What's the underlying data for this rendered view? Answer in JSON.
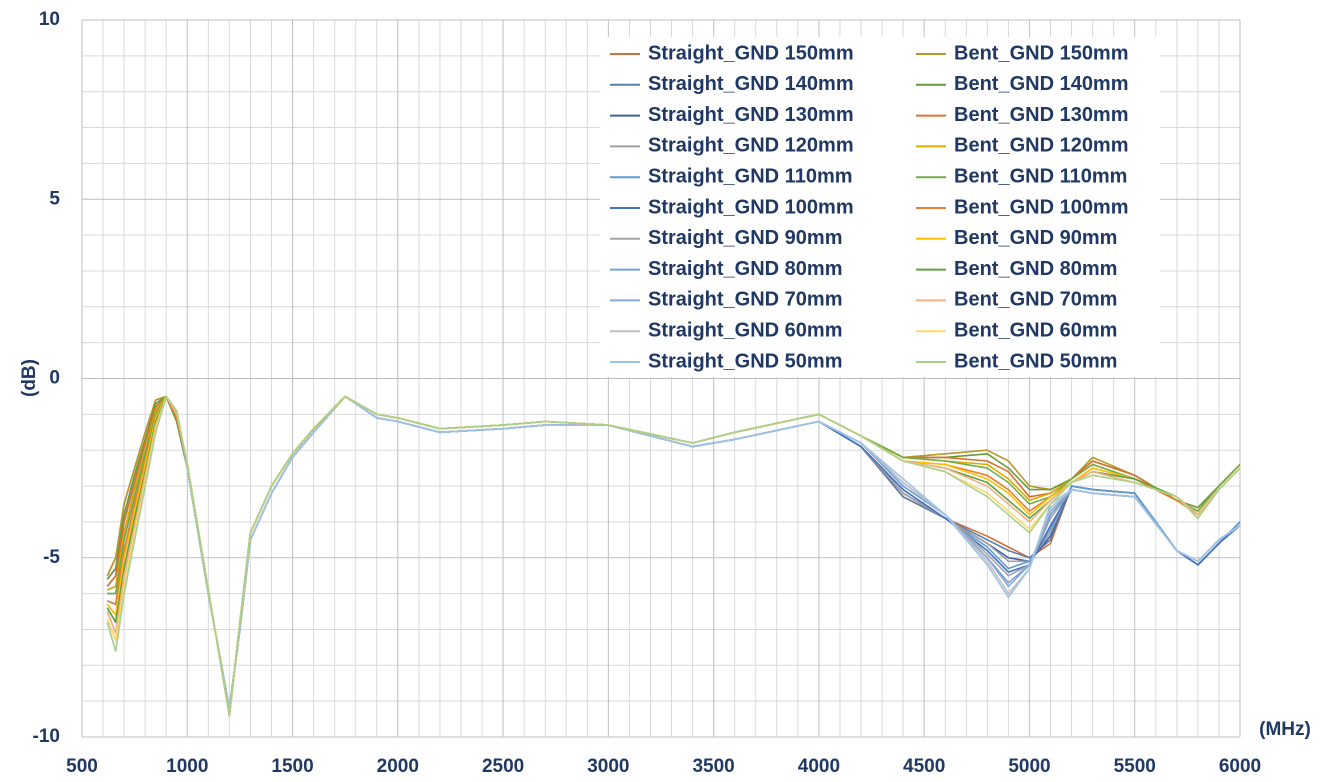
{
  "chart_data": {
    "type": "line",
    "x_label": "(MHz)",
    "y_label": "(dB)",
    "x": [
      620,
      660,
      700,
      750,
      800,
      850,
      900,
      950,
      1000,
      1100,
      1200,
      1250,
      1300,
      1400,
      1500,
      1600,
      1750,
      1900,
      2000,
      2200,
      2500,
      2700,
      3000,
      3400,
      3600,
      4000,
      4200,
      4400,
      4600,
      4800,
      4900,
      5000,
      5100,
      5200,
      5300,
      5500,
      5700,
      5800,
      5900,
      6000
    ],
    "xlim": [
      500,
      6000
    ],
    "xticks": [
      500,
      1000,
      1500,
      2000,
      2500,
      3000,
      3500,
      4000,
      4500,
      5000,
      5500,
      6000
    ],
    "ylim": [
      -10,
      10
    ],
    "yticks": [
      -10,
      -5,
      0,
      5,
      10
    ],
    "minor_xticks": [
      600,
      700,
      800,
      900,
      1100,
      1200,
      1300,
      1400,
      1600,
      1700,
      1800,
      1900,
      2100,
      2200,
      2300,
      2400,
      2600,
      2700,
      2800,
      2900,
      3100,
      3200,
      3300,
      3400,
      3600,
      3700,
      3800,
      3900,
      4100,
      4200,
      4300,
      4400,
      4600,
      4700,
      4800,
      4900,
      5100,
      5200,
      5300,
      5400,
      5600,
      5700,
      5800,
      5900
    ],
    "minor_yticks": [
      -9,
      -8,
      -7,
      -6,
      -4,
      -3,
      -2,
      -1,
      1,
      2,
      3,
      4,
      6,
      7,
      8,
      9
    ],
    "grid": true,
    "legend": "upper right",
    "series": [
      {
        "name": "Straight_GND 150mm",
        "color": "#d0703c",
        "values": [
          -5.5,
          -5.0,
          -3.5,
          -2.5,
          -1.5,
          -0.6,
          -0.5,
          -1.2,
          -2.5,
          -6.0,
          -9.2,
          -7.0,
          -4.5,
          -3.2,
          -2.2,
          -1.5,
          -0.5,
          -1.1,
          -1.2,
          -1.5,
          -1.4,
          -1.3,
          -1.3,
          -1.9,
          -1.7,
          -1.2,
          -1.9,
          -3.3,
          -3.9,
          -4.4,
          -4.7,
          -5.0,
          -4.6,
          -3.0,
          -3.1,
          -3.2,
          -4.8,
          -5.2,
          -4.6,
          -4.0
        ]
      },
      {
        "name": "Straight_GND 140mm",
        "color": "#5b7fa6",
        "values": [
          -5.6,
          -5.3,
          -3.8,
          -2.7,
          -1.7,
          -0.7,
          -0.5,
          -1.2,
          -2.5,
          -6.0,
          -9.2,
          -7.0,
          -4.5,
          -3.2,
          -2.2,
          -1.5,
          -0.5,
          -1.1,
          -1.2,
          -1.5,
          -1.4,
          -1.3,
          -1.3,
          -1.9,
          -1.7,
          -1.2,
          -1.9,
          -3.3,
          -3.9,
          -4.5,
          -4.8,
          -5.0,
          -4.5,
          -3.0,
          -3.1,
          -3.2,
          -4.8,
          -5.2,
          -4.6,
          -4.0
        ]
      },
      {
        "name": "Straight_GND 130mm",
        "color": "#3f5fa8",
        "values": [
          -5.8,
          -5.5,
          -4.0,
          -2.9,
          -1.8,
          -0.8,
          -0.5,
          -1.1,
          -2.5,
          -6.0,
          -9.2,
          -7.0,
          -4.5,
          -3.2,
          -2.2,
          -1.5,
          -0.5,
          -1.1,
          -1.2,
          -1.5,
          -1.4,
          -1.3,
          -1.3,
          -1.9,
          -1.7,
          -1.2,
          -1.9,
          -3.2,
          -3.9,
          -4.6,
          -5.0,
          -5.1,
          -4.4,
          -3.0,
          -3.1,
          -3.2,
          -4.8,
          -5.2,
          -4.6,
          -4.0
        ]
      },
      {
        "name": "Straight_GND 120mm",
        "color": "#a0a0a0",
        "values": [
          -5.9,
          -5.8,
          -4.3,
          -3.1,
          -2.0,
          -0.9,
          -0.5,
          -1.1,
          -2.5,
          -6.0,
          -9.2,
          -7.0,
          -4.5,
          -3.2,
          -2.2,
          -1.5,
          -0.5,
          -1.1,
          -1.2,
          -1.5,
          -1.4,
          -1.3,
          -1.3,
          -1.9,
          -1.7,
          -1.2,
          -1.9,
          -3.2,
          -3.9,
          -4.6,
          -5.1,
          -5.1,
          -4.3,
          -3.0,
          -3.1,
          -3.2,
          -4.8,
          -5.2,
          -4.6,
          -4.0
        ]
      },
      {
        "name": "Straight_GND 110mm",
        "color": "#5b9bd5",
        "values": [
          -6.0,
          -6.0,
          -4.5,
          -3.3,
          -2.1,
          -1.0,
          -0.5,
          -1.1,
          -2.5,
          -6.0,
          -9.2,
          -7.0,
          -4.5,
          -3.2,
          -2.2,
          -1.5,
          -0.5,
          -1.1,
          -1.2,
          -1.5,
          -1.4,
          -1.3,
          -1.3,
          -1.9,
          -1.7,
          -1.2,
          -1.9,
          -3.1,
          -3.9,
          -4.7,
          -5.3,
          -5.1,
          -4.2,
          -3.0,
          -3.1,
          -3.2,
          -4.8,
          -5.2,
          -4.6,
          -4.0
        ]
      },
      {
        "name": "Straight_GND 100mm",
        "color": "#4472c4",
        "values": [
          -6.2,
          -6.3,
          -4.8,
          -3.5,
          -2.3,
          -1.1,
          -0.5,
          -1.1,
          -2.5,
          -6.0,
          -9.2,
          -7.0,
          -4.5,
          -3.2,
          -2.2,
          -1.5,
          -0.5,
          -1.1,
          -1.2,
          -1.5,
          -1.4,
          -1.3,
          -1.3,
          -1.9,
          -1.7,
          -1.2,
          -1.9,
          -3.1,
          -3.9,
          -4.8,
          -5.4,
          -5.2,
          -4.1,
          -3.1,
          -3.2,
          -3.3,
          -4.8,
          -5.2,
          -4.6,
          -4.1
        ]
      },
      {
        "name": "Straight_GND 90mm",
        "color": "#a5a5a5",
        "values": [
          -6.3,
          -6.6,
          -5.0,
          -3.7,
          -2.4,
          -1.1,
          -0.5,
          -1.0,
          -2.5,
          -6.0,
          -9.2,
          -7.0,
          -4.5,
          -3.2,
          -2.2,
          -1.5,
          -0.5,
          -1.1,
          -1.2,
          -1.5,
          -1.4,
          -1.3,
          -1.3,
          -1.9,
          -1.7,
          -1.2,
          -1.8,
          -3.0,
          -3.8,
          -4.9,
          -5.5,
          -5.2,
          -3.9,
          -3.1,
          -3.2,
          -3.3,
          -4.8,
          -5.1,
          -4.5,
          -4.1
        ]
      },
      {
        "name": "Straight_GND 80mm",
        "color": "#6fa3d8",
        "values": [
          -6.4,
          -6.8,
          -5.3,
          -3.9,
          -2.6,
          -1.2,
          -0.5,
          -1.0,
          -2.5,
          -6.0,
          -9.2,
          -7.0,
          -4.5,
          -3.2,
          -2.2,
          -1.5,
          -0.5,
          -1.1,
          -1.2,
          -1.5,
          -1.4,
          -1.3,
          -1.3,
          -1.9,
          -1.7,
          -1.2,
          -1.8,
          -3.0,
          -3.8,
          -5.0,
          -5.7,
          -5.2,
          -3.8,
          -3.1,
          -3.2,
          -3.3,
          -4.8,
          -5.1,
          -4.5,
          -4.1
        ]
      },
      {
        "name": "Straight_GND 70mm",
        "color": "#8fa8d8",
        "values": [
          -6.5,
          -7.1,
          -5.5,
          -4.1,
          -2.7,
          -1.3,
          -0.5,
          -1.0,
          -2.5,
          -6.0,
          -9.2,
          -7.0,
          -4.5,
          -3.2,
          -2.2,
          -1.5,
          -0.5,
          -1.1,
          -1.2,
          -1.5,
          -1.4,
          -1.3,
          -1.3,
          -1.9,
          -1.7,
          -1.2,
          -1.8,
          -2.9,
          -3.8,
          -5.0,
          -5.8,
          -5.2,
          -3.7,
          -3.1,
          -3.2,
          -3.3,
          -4.8,
          -5.1,
          -4.5,
          -4.1
        ]
      },
      {
        "name": "Straight_GND 60mm",
        "color": "#c0c0c0",
        "values": [
          -6.7,
          -7.3,
          -5.8,
          -4.3,
          -2.9,
          -1.4,
          -0.5,
          -0.9,
          -2.5,
          -6.0,
          -9.2,
          -7.0,
          -4.5,
          -3.2,
          -2.2,
          -1.5,
          -0.5,
          -1.1,
          -1.2,
          -1.5,
          -1.4,
          -1.3,
          -1.3,
          -1.9,
          -1.7,
          -1.2,
          -1.8,
          -2.9,
          -3.8,
          -5.1,
          -6.0,
          -5.3,
          -3.6,
          -3.1,
          -3.2,
          -3.3,
          -4.8,
          -5.1,
          -4.5,
          -4.1
        ]
      },
      {
        "name": "Straight_GND 50mm",
        "color": "#9dc3e6",
        "values": [
          -6.8,
          -7.6,
          -6.0,
          -4.5,
          -3.0,
          -1.5,
          -0.5,
          -0.9,
          -2.5,
          -6.0,
          -9.2,
          -7.0,
          -4.5,
          -3.2,
          -2.2,
          -1.5,
          -0.5,
          -1.1,
          -1.2,
          -1.5,
          -1.4,
          -1.3,
          -1.3,
          -1.9,
          -1.7,
          -1.2,
          -1.8,
          -2.8,
          -3.8,
          -5.2,
          -6.1,
          -5.3,
          -3.5,
          -3.1,
          -3.2,
          -3.3,
          -4.8,
          -5.1,
          -4.5,
          -4.1
        ]
      },
      {
        "name": "Bent_GND 150mm",
        "color": "#b39a2a",
        "values": [
          -5.5,
          -5.0,
          -3.5,
          -2.5,
          -1.5,
          -0.6,
          -0.5,
          -1.2,
          -2.4,
          -5.9,
          -9.4,
          -6.8,
          -4.3,
          -3.0,
          -2.1,
          -1.4,
          -0.5,
          -1.0,
          -1.1,
          -1.4,
          -1.3,
          -1.2,
          -1.3,
          -1.8,
          -1.5,
          -1.0,
          -1.6,
          -2.2,
          -2.1,
          -2.0,
          -2.3,
          -3.0,
          -3.1,
          -2.8,
          -2.2,
          -2.7,
          -3.4,
          -3.6,
          -3.0,
          -2.4
        ]
      },
      {
        "name": "Bent_GND 140mm",
        "color": "#6a9a3a",
        "values": [
          -5.6,
          -5.3,
          -3.8,
          -2.7,
          -1.7,
          -0.7,
          -0.5,
          -1.2,
          -2.4,
          -5.9,
          -9.4,
          -6.8,
          -4.3,
          -3.0,
          -2.1,
          -1.4,
          -0.5,
          -1.0,
          -1.1,
          -1.4,
          -1.3,
          -1.2,
          -1.3,
          -1.8,
          -1.5,
          -1.0,
          -1.6,
          -2.2,
          -2.2,
          -2.1,
          -2.5,
          -3.1,
          -3.1,
          -2.8,
          -2.3,
          -2.7,
          -3.4,
          -3.6,
          -3.0,
          -2.4
        ]
      },
      {
        "name": "Bent_GND 130mm",
        "color": "#e07030",
        "values": [
          -5.8,
          -5.5,
          -4.0,
          -2.9,
          -1.8,
          -0.8,
          -0.5,
          -1.1,
          -2.4,
          -5.9,
          -9.4,
          -6.8,
          -4.3,
          -3.0,
          -2.1,
          -1.4,
          -0.5,
          -1.0,
          -1.1,
          -1.4,
          -1.3,
          -1.2,
          -1.3,
          -1.8,
          -1.5,
          -1.0,
          -1.6,
          -2.2,
          -2.2,
          -2.3,
          -2.6,
          -3.3,
          -3.2,
          -2.8,
          -2.3,
          -2.7,
          -3.4,
          -3.7,
          -3.0,
          -2.4
        ]
      },
      {
        "name": "Bent_GND 120mm",
        "color": "#e0a800",
        "values": [
          -5.9,
          -5.8,
          -4.3,
          -3.1,
          -2.0,
          -0.9,
          -0.5,
          -1.1,
          -2.4,
          -5.9,
          -9.4,
          -6.8,
          -4.3,
          -3.0,
          -2.1,
          -1.4,
          -0.5,
          -1.0,
          -1.1,
          -1.4,
          -1.3,
          -1.2,
          -1.3,
          -1.8,
          -1.5,
          -1.0,
          -1.6,
          -2.2,
          -2.3,
          -2.4,
          -2.8,
          -3.4,
          -3.2,
          -2.8,
          -2.4,
          -2.8,
          -3.4,
          -3.7,
          -3.0,
          -2.4
        ]
      },
      {
        "name": "Bent_GND 110mm",
        "color": "#70ad47",
        "values": [
          -6.0,
          -6.0,
          -4.5,
          -3.3,
          -2.1,
          -1.0,
          -0.5,
          -1.1,
          -2.4,
          -5.9,
          -9.4,
          -6.8,
          -4.3,
          -3.0,
          -2.1,
          -1.4,
          -0.5,
          -1.0,
          -1.1,
          -1.4,
          -1.3,
          -1.2,
          -1.3,
          -1.8,
          -1.5,
          -1.0,
          -1.6,
          -2.2,
          -2.3,
          -2.5,
          -2.9,
          -3.5,
          -3.3,
          -2.8,
          -2.4,
          -2.8,
          -3.4,
          -3.7,
          -3.0,
          -2.4
        ]
      },
      {
        "name": "Bent_GND 100mm",
        "color": "#ed7d31",
        "values": [
          -6.2,
          -6.3,
          -4.8,
          -3.5,
          -2.3,
          -1.1,
          -0.5,
          -1.1,
          -2.4,
          -5.9,
          -9.4,
          -6.8,
          -4.3,
          -3.0,
          -2.1,
          -1.4,
          -0.5,
          -1.0,
          -1.1,
          -1.4,
          -1.3,
          -1.2,
          -1.3,
          -1.8,
          -1.5,
          -1.0,
          -1.6,
          -2.3,
          -2.4,
          -2.7,
          -3.1,
          -3.7,
          -3.3,
          -2.9,
          -2.5,
          -2.8,
          -3.4,
          -3.8,
          -3.1,
          -2.5
        ]
      },
      {
        "name": "Bent_GND 90mm",
        "color": "#ffc000",
        "values": [
          -6.3,
          -6.6,
          -5.0,
          -3.7,
          -2.4,
          -1.1,
          -0.5,
          -1.0,
          -2.4,
          -5.9,
          -9.4,
          -6.8,
          -4.3,
          -3.0,
          -2.1,
          -1.4,
          -0.5,
          -1.0,
          -1.1,
          -1.4,
          -1.3,
          -1.2,
          -1.3,
          -1.8,
          -1.5,
          -1.0,
          -1.6,
          -2.3,
          -2.4,
          -2.8,
          -3.2,
          -3.8,
          -3.3,
          -2.9,
          -2.5,
          -2.8,
          -3.3,
          -3.8,
          -3.1,
          -2.5
        ]
      },
      {
        "name": "Bent_GND 80mm",
        "color": "#5fa040",
        "values": [
          -6.4,
          -6.8,
          -5.3,
          -3.9,
          -2.6,
          -1.2,
          -0.5,
          -1.0,
          -2.4,
          -5.9,
          -9.4,
          -6.8,
          -4.3,
          -3.0,
          -2.1,
          -1.4,
          -0.5,
          -1.0,
          -1.1,
          -1.4,
          -1.3,
          -1.2,
          -1.3,
          -1.8,
          -1.5,
          -1.0,
          -1.6,
          -2.3,
          -2.5,
          -2.9,
          -3.4,
          -3.9,
          -3.4,
          -2.9,
          -2.6,
          -2.8,
          -3.3,
          -3.8,
          -3.1,
          -2.5
        ]
      },
      {
        "name": "Bent_GND 70mm",
        "color": "#f4b183",
        "values": [
          -6.5,
          -7.1,
          -5.5,
          -4.1,
          -2.7,
          -1.3,
          -0.5,
          -1.0,
          -2.4,
          -5.9,
          -9.4,
          -6.8,
          -4.3,
          -3.0,
          -2.1,
          -1.4,
          -0.5,
          -1.0,
          -1.1,
          -1.4,
          -1.3,
          -1.2,
          -1.3,
          -1.8,
          -1.5,
          -1.0,
          -1.6,
          -2.3,
          -2.5,
          -3.0,
          -3.5,
          -4.0,
          -3.4,
          -2.9,
          -2.6,
          -2.9,
          -3.3,
          -3.8,
          -3.1,
          -2.5
        ]
      },
      {
        "name": "Bent_GND 60mm",
        "color": "#ffd966",
        "values": [
          -6.7,
          -7.3,
          -5.8,
          -4.3,
          -2.9,
          -1.4,
          -0.5,
          -0.9,
          -2.4,
          -5.9,
          -9.4,
          -6.8,
          -4.3,
          -3.0,
          -2.1,
          -1.4,
          -0.5,
          -1.0,
          -1.1,
          -1.4,
          -1.3,
          -1.2,
          -1.3,
          -1.8,
          -1.5,
          -1.0,
          -1.6,
          -2.3,
          -2.6,
          -3.2,
          -3.7,
          -4.2,
          -3.5,
          -2.9,
          -2.7,
          -2.9,
          -3.3,
          -3.9,
          -3.1,
          -2.5
        ]
      },
      {
        "name": "Bent_GND 50mm",
        "color": "#a9d18e",
        "values": [
          -6.8,
          -7.6,
          -6.0,
          -4.5,
          -3.0,
          -1.5,
          -0.5,
          -0.9,
          -2.4,
          -5.9,
          -9.4,
          -6.8,
          -4.3,
          -3.0,
          -2.1,
          -1.4,
          -0.5,
          -1.0,
          -1.1,
          -1.4,
          -1.3,
          -1.2,
          -1.3,
          -1.8,
          -1.5,
          -1.0,
          -1.6,
          -2.3,
          -2.6,
          -3.3,
          -3.8,
          -4.3,
          -3.5,
          -2.9,
          -2.7,
          -2.9,
          -3.3,
          -3.9,
          -3.1,
          -2.5
        ]
      }
    ]
  }
}
